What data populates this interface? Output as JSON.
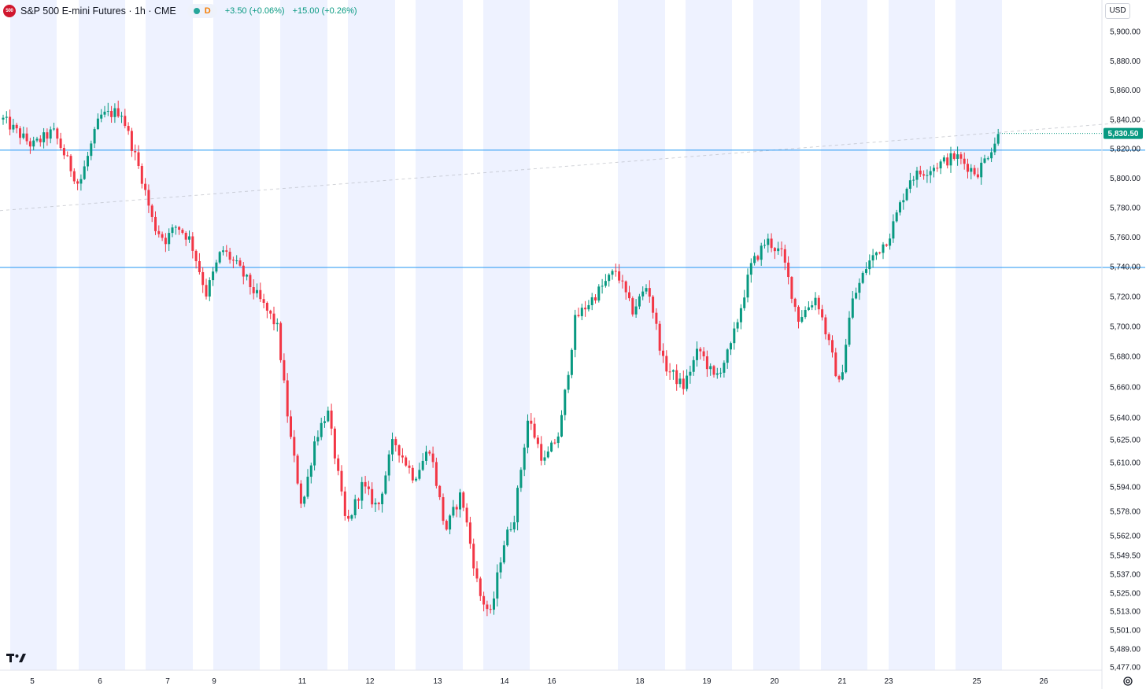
{
  "header": {
    "symbol_badge": "500",
    "title": "S&P 500 E-mini Futures · 1h · CME",
    "status_letter": "D",
    "change_1": "+3.50 (+0.06%)",
    "change_2": "+15.00 (+0.26%)"
  },
  "currency": "USD",
  "colors": {
    "up": "#089981",
    "down": "#f23645",
    "hline": "#2196f3",
    "session_band": "#eef2ff",
    "last_price_bg": "#089981"
  },
  "chart_data": {
    "type": "candlestick",
    "timeframe": "1h",
    "x_ticks": [
      "5",
      "6",
      "7",
      "9",
      "11",
      "12",
      "13",
      "14",
      "16",
      "18",
      "19",
      "20",
      "21",
      "23",
      "25",
      "26"
    ],
    "y_ticks": [
      "5,900.00",
      "5,880.00",
      "5,860.00",
      "5,840.00",
      "5,820.00",
      "5,800.00",
      "5,780.00",
      "5,760.00",
      "5,740.00",
      "5,720.00",
      "5,700.00",
      "5,680.00",
      "5,660.00",
      "5,640.00",
      "5,625.00",
      "5,610.00",
      "5,594.00",
      "5,578.00",
      "5,562.00",
      "5,549.50",
      "5,537.00",
      "5,525.00",
      "5,513.00",
      "5,501.00",
      "5,489.00",
      "5,477.00"
    ],
    "horizontal_lines": [
      5819,
      5739.5
    ],
    "last_price": 5830.5,
    "last_price_label": "5,830.50",
    "trend_line": [
      {
        "x": "5",
        "y": 5778
      },
      {
        "x": "26",
        "y": 5839
      }
    ],
    "price_path": [
      {
        "x": "5",
        "y": 5840
      },
      {
        "x": "5",
        "y": 5822
      },
      {
        "x": "5",
        "y": 5832
      },
      {
        "x": "6",
        "y": 5795
      },
      {
        "x": "6",
        "y": 5842
      },
      {
        "x": "6",
        "y": 5846
      },
      {
        "x": "7",
        "y": 5800
      },
      {
        "x": "7",
        "y": 5768
      },
      {
        "x": "7",
        "y": 5758
      },
      {
        "x": "7",
        "y": 5768
      },
      {
        "x": "9",
        "y": 5758
      },
      {
        "x": "9",
        "y": 5722
      },
      {
        "x": "9",
        "y": 5752
      },
      {
        "x": "9",
        "y": 5740
      },
      {
        "x": "11",
        "y": 5700
      },
      {
        "x": "11",
        "y": 5630
      },
      {
        "x": "11",
        "y": 5580
      },
      {
        "x": "11",
        "y": 5625
      },
      {
        "x": "11",
        "y": 5645
      },
      {
        "x": "12",
        "y": 5568
      },
      {
        "x": "12",
        "y": 5595
      },
      {
        "x": "12",
        "y": 5580
      },
      {
        "x": "12",
        "y": 5625
      },
      {
        "x": "13",
        "y": 5600
      },
      {
        "x": "13",
        "y": 5620
      },
      {
        "x": "13",
        "y": 5565
      },
      {
        "x": "13",
        "y": 5590
      },
      {
        "x": "14",
        "y": 5525
      },
      {
        "x": "14",
        "y": 5510
      },
      {
        "x": "14",
        "y": 5555
      },
      {
        "x": "14",
        "y": 5575
      },
      {
        "x": "16",
        "y": 5640
      },
      {
        "x": "16",
        "y": 5610
      },
      {
        "x": "16",
        "y": 5630
      },
      {
        "x": "16",
        "y": 5705
      },
      {
        "x": "18",
        "y": 5738
      },
      {
        "x": "18",
        "y": 5710
      },
      {
        "x": "18",
        "y": 5728
      },
      {
        "x": "18",
        "y": 5675
      },
      {
        "x": "19",
        "y": 5660
      },
      {
        "x": "19",
        "y": 5685
      },
      {
        "x": "19",
        "y": 5665
      },
      {
        "x": "19",
        "y": 5685
      },
      {
        "x": "20",
        "y": 5740
      },
      {
        "x": "20",
        "y": 5758
      },
      {
        "x": "20",
        "y": 5748
      },
      {
        "x": "20",
        "y": 5705
      },
      {
        "x": "21",
        "y": 5720
      },
      {
        "x": "21",
        "y": 5690
      },
      {
        "x": "21",
        "y": 5660
      },
      {
        "x": "21",
        "y": 5715
      },
      {
        "x": "23",
        "y": 5742
      },
      {
        "x": "23",
        "y": 5760
      },
      {
        "x": "23",
        "y": 5800
      },
      {
        "x": "25",
        "y": 5815
      },
      {
        "x": "25",
        "y": 5803
      },
      {
        "x": "25",
        "y": 5830.5
      }
    ]
  }
}
